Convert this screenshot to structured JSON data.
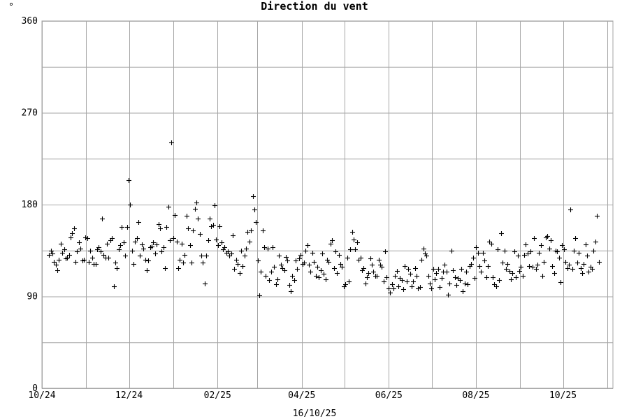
{
  "chart_data": {
    "type": "scatter",
    "title": "Direction du vent",
    "y_unit": "°",
    "footer": "16/10/25",
    "ylim": [
      0,
      360
    ],
    "y_ticks": [
      0,
      90,
      180,
      270,
      360
    ],
    "x_ticks": [
      "10/24",
      "12/24",
      "02/25",
      "04/25",
      "06/25",
      "08/25",
      "10/25"
    ],
    "x_start": "2024-10-01",
    "x_end": "2025-11-05",
    "grid": true,
    "marker": "plus",
    "colors": {
      "points": "#000000",
      "grid": "#a6a6a6",
      "background": "#ffffff"
    },
    "series": [
      {
        "values": [
          131,
          135,
          132,
          124,
          121,
          116,
          126,
          142,
          133,
          136,
          127,
          128,
          131,
          148,
          152,
          157,
          124,
          134,
          143,
          137,
          125,
          126,
          148,
          147,
          124,
          135,
          128,
          122,
          122,
          136,
          138,
          134,
          166,
          131,
          128,
          142,
          128,
          145,
          147,
          100,
          123,
          118,
          136,
          140,
          158,
          143,
          130,
          158,
          204,
          180,
          135,
          122,
          144,
          147,
          163,
          130,
          141,
          137,
          126,
          116,
          125,
          138,
          139,
          143,
          132,
          141,
          161,
          157,
          134,
          138,
          118,
          158,
          178,
          145,
          241,
          147,
          170,
          144,
          118,
          126,
          142,
          123,
          131,
          169,
          157,
          140,
          123,
          155,
          176,
          182,
          166,
          151,
          130,
          123,
          103,
          130,
          145,
          166,
          159,
          160,
          179,
          146,
          140,
          159,
          143,
          136,
          138,
          133,
          134,
          130,
          132,
          150,
          117,
          126,
          122,
          113,
          135,
          120,
          130,
          137,
          153,
          144,
          155,
          188,
          175,
          163,
          125,
          91,
          114,
          155,
          138,
          110,
          137,
          106,
          114,
          138,
          119,
          102,
          107,
          130,
          121,
          118,
          116,
          129,
          125,
          101,
          95,
          110,
          106,
          125,
          117,
          127,
          131,
          122,
          123,
          135,
          140,
          121,
          114,
          133,
          124,
          110,
          119,
          109,
          116,
          132,
          112,
          107,
          126,
          124,
          142,
          145,
          118,
          134,
          113,
          131,
          122,
          119,
          100,
          102,
          128,
          105,
          136,
          153,
          146,
          136,
          143,
          126,
          128,
          116,
          118,
          103,
          109,
          113,
          127,
          121,
          114,
          110,
          110,
          126,
          121,
          119,
          105,
          134,
          109,
          98,
          94,
          102,
          98,
          110,
          115,
          100,
          108,
          106,
          97,
          120,
          105,
          117,
          112,
          100,
          105,
          118,
          110,
          98,
          99,
          126,
          137,
          132,
          130,
          110,
          103,
          98,
          117,
          107,
          113,
          117,
          99,
          108,
          114,
          121,
          114,
          92,
          103,
          135,
          116,
          109,
          101,
          108,
          106,
          117,
          95,
          103,
          114,
          102,
          120,
          122,
          128,
          108,
          138,
          133,
          120,
          114,
          133,
          125,
          109,
          120,
          144,
          142,
          109,
          102,
          100,
          136,
          106,
          152,
          123,
          135,
          117,
          122,
          115,
          107,
          113,
          134,
          109,
          130,
          115,
          119,
          110,
          131,
          141,
          132,
          120,
          134,
          119,
          147,
          117,
          121,
          133,
          140,
          110,
          124,
          148,
          149,
          137,
          145,
          120,
          113,
          135,
          134,
          128,
          104,
          140,
          136,
          124,
          118,
          121,
          175,
          117,
          135,
          147,
          123,
          133,
          118,
          113,
          122,
          141,
          130,
          114,
          119,
          117,
          135,
          144,
          169,
          124
        ]
      }
    ]
  }
}
